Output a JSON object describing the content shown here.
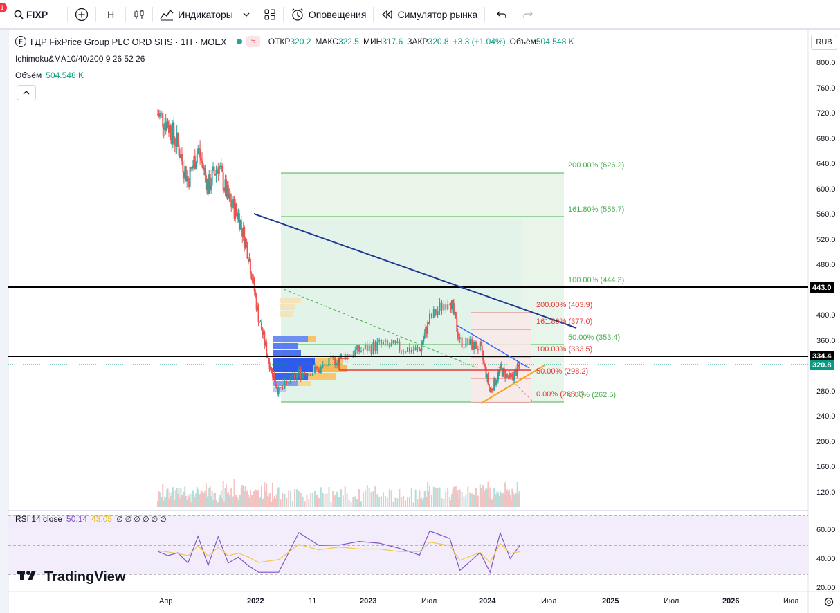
{
  "toolbar": {
    "badge": "1",
    "symbol": "FIXP",
    "interval": "H",
    "indicators_label": "Индикаторы",
    "alerts_label": "Оповещения",
    "simulator_label": "Симулятор рынка"
  },
  "legend": {
    "title": "ГДР FixPrice Group PLC ORD SHS · 1H · MOEX",
    "open_label": "ОТКР",
    "open": "320.2",
    "high_label": "МАКС",
    "high": "322.5",
    "low_label": "МИН",
    "low": "317.6",
    "close_label": "ЗАКР",
    "close": "320.8",
    "change": "+3.3 (+1.04%)",
    "volume_label": "Объём",
    "volume": "504.548 K",
    "indicator_line": "Ichimoku&MA10/40/200 9 26 52 26",
    "volume_line_label": "Объём",
    "volume_line_value": "504.548 K",
    "rsi_label": "RSI 14 close",
    "rsi_value": "50.14",
    "rsi_ma": "43.05",
    "rsi_extra": "∅ ∅ ∅ ∅ ∅ ∅"
  },
  "currency": "RUB",
  "price_axis": [
    "800.0",
    "760.0",
    "720.0",
    "680.0",
    "640.0",
    "600.0",
    "560.0",
    "520.0",
    "480.0",
    "400.0",
    "360.0",
    "280.0",
    "240.0",
    "200.0",
    "160.0",
    "120.0"
  ],
  "rsi_axis": [
    "60.00",
    "40.00",
    "20.00"
  ],
  "price_markers": {
    "level_443": "443.0",
    "level_334": "334.4",
    "last": "320.8"
  },
  "time_axis": [
    "Апр",
    "2022",
    "11",
    "2023",
    "Июл",
    "2024",
    "Июл",
    "2025",
    "Июл",
    "2026",
    "Июл"
  ],
  "fib_big": [
    "200.00% (626.2)",
    "161.80% (556.7)",
    "100.00% (444.3)",
    "50.00% (353.4)",
    "0.00% (262.5)"
  ],
  "fib_small": [
    "200.00% (403.9)",
    "161.80% (377.0)",
    "100.00% (333.5)",
    "50.00% (298.2)",
    "0.00% (263.0)"
  ],
  "brand": "TradingView",
  "colors": {
    "up": "#26a69a",
    "down": "#ef5350",
    "accent": "#2962ff",
    "trend_line": "#1f3a93",
    "triangle_line": "#f7a21b"
  },
  "chart_data": {
    "type": "candlestick",
    "symbol": "FIXP",
    "timeframe": "1H",
    "close_series": [
      {
        "x": "2021-03",
        "y": 720
      },
      {
        "x": "2021-04",
        "y": 705
      },
      {
        "x": "2021-05",
        "y": 670
      },
      {
        "x": "2021-06",
        "y": 615
      },
      {
        "x": "2021-07",
        "y": 665
      },
      {
        "x": "2021-08",
        "y": 605
      },
      {
        "x": "2021-09",
        "y": 640
      },
      {
        "x": "2021-10",
        "y": 585
      },
      {
        "x": "2021-11",
        "y": 560
      },
      {
        "x": "2021-12",
        "y": 500
      },
      {
        "x": "2022-01",
        "y": 400
      },
      {
        "x": "2022-02",
        "y": 330
      },
      {
        "x": "2022-03",
        "y": 280
      },
      {
        "x": "2022-05",
        "y": 310
      },
      {
        "x": "2022-07",
        "y": 315
      },
      {
        "x": "2022-09",
        "y": 335
      },
      {
        "x": "2022-11",
        "y": 345
      },
      {
        "x": "2023-01",
        "y": 355
      },
      {
        "x": "2023-03",
        "y": 350
      },
      {
        "x": "2023-05",
        "y": 345
      },
      {
        "x": "2023-06",
        "y": 395
      },
      {
        "x": "2023-08",
        "y": 430
      },
      {
        "x": "2023-09",
        "y": 360
      },
      {
        "x": "2023-11",
        "y": 350
      },
      {
        "x": "2023-12",
        "y": 280
      },
      {
        "x": "2024-01",
        "y": 315
      },
      {
        "x": "2024-02",
        "y": 300
      },
      {
        "x": "2024-03",
        "y": 320.8
      }
    ],
    "levels": [
      443.0,
      334.4
    ],
    "last": 320.8,
    "rsi_last": 50.14,
    "rsi_ma": 43.05,
    "ylim": [
      100,
      820
    ]
  }
}
